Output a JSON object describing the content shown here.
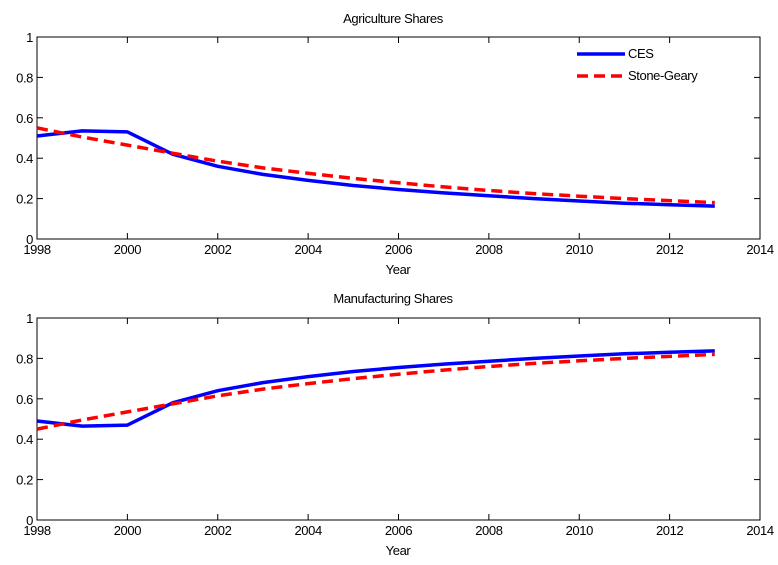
{
  "chart_data": [
    {
      "type": "line",
      "title": "Agriculture Shares",
      "xlabel": "Year",
      "ylabel": "",
      "xlim": [
        1998,
        2014
      ],
      "ylim": [
        0,
        1
      ],
      "x_ticks": [
        1998,
        2000,
        2002,
        2004,
        2006,
        2008,
        2010,
        2012,
        2014
      ],
      "y_ticks": [
        0,
        0.2,
        0.4,
        0.6,
        0.8,
        1
      ],
      "x_tick_labels": [
        "1998",
        "2000",
        "2002",
        "2004",
        "2006",
        "2008",
        "2010",
        "2012",
        "2014"
      ],
      "y_tick_labels": [
        "0",
        "0.2",
        "0.4",
        "0.6",
        "0.8",
        "1"
      ],
      "grid": false,
      "legend": {
        "position": "top-right",
        "entries": [
          "CES",
          "Stone-Geary"
        ]
      },
      "x": [
        1998,
        1999,
        2000,
        2001,
        2002,
        2003,
        2004,
        2005,
        2006,
        2007,
        2008,
        2009,
        2010,
        2011,
        2012,
        2013
      ],
      "series": [
        {
          "name": "CES",
          "color": "#0000ff",
          "style": "solid",
          "values": [
            0.51,
            0.535,
            0.53,
            0.42,
            0.36,
            0.32,
            0.29,
            0.265,
            0.245,
            0.228,
            0.214,
            0.2,
            0.188,
            0.177,
            0.17,
            0.163
          ]
        },
        {
          "name": "Stone-Geary",
          "color": "#ff0000",
          "style": "dashed",
          "values": [
            0.55,
            0.505,
            0.465,
            0.425,
            0.385,
            0.352,
            0.325,
            0.3,
            0.278,
            0.258,
            0.24,
            0.225,
            0.212,
            0.2,
            0.19,
            0.18
          ]
        }
      ]
    },
    {
      "type": "line",
      "title": "Manufacturing Shares",
      "xlabel": "Year",
      "ylabel": "",
      "xlim": [
        1998,
        2014
      ],
      "ylim": [
        0,
        1
      ],
      "x_ticks": [
        1998,
        2000,
        2002,
        2004,
        2006,
        2008,
        2010,
        2012,
        2014
      ],
      "y_ticks": [
        0,
        0.2,
        0.4,
        0.6,
        0.8,
        1
      ],
      "x_tick_labels": [
        "1998",
        "2000",
        "2002",
        "2004",
        "2006",
        "2008",
        "2010",
        "2012",
        "2014"
      ],
      "y_tick_labels": [
        "0",
        "0.2",
        "0.4",
        "0.6",
        "0.8",
        "1"
      ],
      "grid": false,
      "x": [
        1998,
        1999,
        2000,
        2001,
        2002,
        2003,
        2004,
        2005,
        2006,
        2007,
        2008,
        2009,
        2010,
        2011,
        2012,
        2013
      ],
      "series": [
        {
          "name": "CES",
          "color": "#0000ff",
          "style": "solid",
          "values": [
            0.49,
            0.465,
            0.47,
            0.58,
            0.64,
            0.68,
            0.71,
            0.735,
            0.755,
            0.772,
            0.786,
            0.8,
            0.812,
            0.823,
            0.83,
            0.837
          ]
        },
        {
          "name": "Stone-Geary",
          "color": "#ff0000",
          "style": "dashed",
          "values": [
            0.45,
            0.495,
            0.535,
            0.575,
            0.615,
            0.648,
            0.675,
            0.7,
            0.722,
            0.742,
            0.76,
            0.775,
            0.788,
            0.8,
            0.81,
            0.82
          ]
        }
      ]
    }
  ]
}
